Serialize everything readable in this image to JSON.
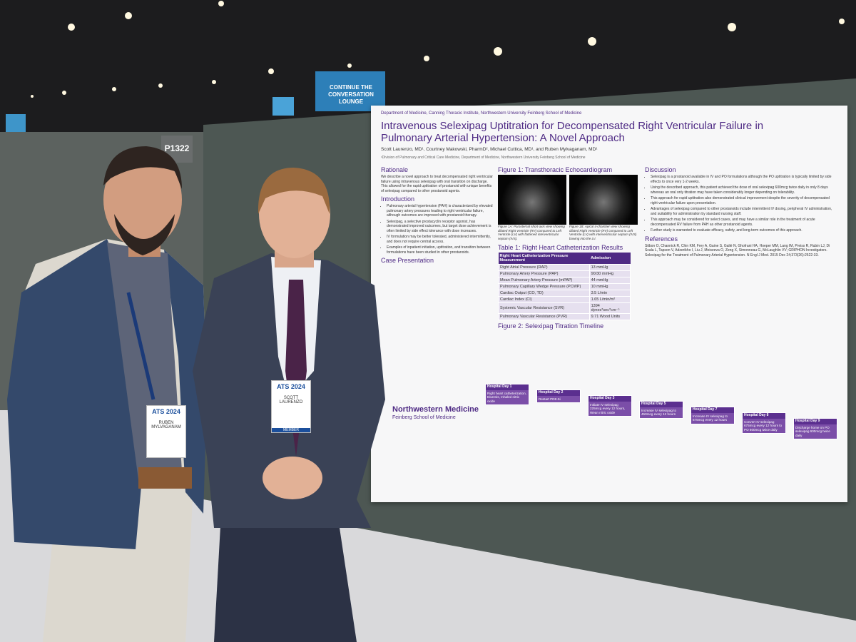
{
  "sign": "CONTINUE THE CONVERSATION LOUNGE",
  "booth": "P1322",
  "poster": {
    "header": "Department of Medicine, Canning Thoracic Institute, Northwestern University Feinberg School of Medicine",
    "title": "Intravenous Selexipag Uptitration for Decompensated Right Ventricular Failure in Pulmonary Arterial Hypertension: A Novel Approach",
    "authors": "Scott Laurenzo, MD¹, Courtney Makowski, PharmD², Michael Cuttica, MD¹, and Ruben Mylvaganam, MD¹",
    "affiliation": "¹Division of Pulmonary and Critical Care Medicine, Department of Medicine, Northwestern University Feinberg School of Medicine",
    "rationale": {
      "heading": "Rationale",
      "text": "We describe a novel approach to treat decompensated right ventricular failure using intravenous selexipag with oral transition on discharge. This allowed for the rapid uptitration of prostanoid with unique benefits of selexipag compared to other prostanoid agents."
    },
    "introduction": {
      "heading": "Introduction",
      "bullets": [
        "Pulmonary arterial hypertension (PAH) is characterized by elevated pulmonary artery pressures leading to right ventricular failure, although outcomes are improved with prostanoid therapy.",
        "Selexipag, a selective prostacyclin receptor agonist, has demonstrated improved outcomes, but target dose achievement is often limited by side effect tolerance with dose increases.",
        "IV formulation may be better tolerated, administered intermittently, and does not require central access.",
        "Examples of inpatient initiation, uptitration, and transition between formulations have been studied in other prostanoids."
      ]
    },
    "case_presentation": {
      "heading": "Case Presentation"
    },
    "figure1": {
      "heading": "Figure 1: Transthoracic Echocardiogram",
      "captions": [
        "Figure 1A: Parasternal short-axis view showing dilated Right Ventricle (RV) compared to Left Ventricle (LV) with flattened interventricular septum (IVS).",
        "Figure 1B: Apical 4-chamber view showing dilated Right Ventricle (RV) compared to Left Ventricle (LV) with interventricular septum (IVS) bowing into the LV."
      ]
    },
    "table1": {
      "heading": "Table 1: Right Heart Catheterization Results",
      "columns": [
        "Right Heart Catheterization Pressure Measurement",
        "Admission"
      ],
      "rows": [
        [
          "Right Atrial Pressure (RAP)",
          "13 mmHg"
        ],
        [
          "Pulmonary Artery Pressure (PAP)",
          "90/30 mmHg"
        ],
        [
          "Mean Pulmonary Artery Pressure (mPAP)",
          "44 mmHg"
        ],
        [
          "Pulmonary Capillary Wedge Pressure (PCWP)",
          "10 mmHg"
        ],
        [
          "Cardiac Output (CO, TD)",
          "3.5 L/min"
        ],
        [
          "Cardiac Index (CI)",
          "1.65 L/min/m²"
        ],
        [
          "Systemic Vascular Resistance (SVR)",
          "1394 dynes*sec*cm⁻⁵"
        ],
        [
          "Pulmonary Vascular Resistance (PVR)",
          "9.71 Wood Units"
        ]
      ]
    },
    "figure2": {
      "heading": "Figure 2: Selexipag Titration Timeline",
      "steps": [
        {
          "day": "Hospital Day 1",
          "text": "Right heart catheterization, Diuresis, Inhaled nitric oxide"
        },
        {
          "day": "Hospital Day 2",
          "text": "Restart PDE-5i"
        },
        {
          "day": "Hospital Day 3",
          "text": "Initiate IV selexipag 225mcg every 12 hours, Wean nitric oxide"
        },
        {
          "day": "Hospital Day 5",
          "text": "Increase IV selexipag to 450mcg every 12 hours"
        },
        {
          "day": "Hospital Day 7",
          "text": "Increase IV selexipag to 675mcg every 12 hours"
        },
        {
          "day": "Hospital Day 8",
          "text": "Convert IV selexipag 675mcg every 12 hours to PO 600mcg twice daily"
        },
        {
          "day": "Hospital Day 9",
          "text": "Discharge home on PO selexipag 600mcg twice daily"
        }
      ]
    },
    "discussion": {
      "heading": "Discussion",
      "bullets": [
        "Selexipag is a prostanoid available in IV and PO formulations although the PO uptitration is typically limited by side effects to once very 1-2 weeks.",
        "Using the described approach, this patient achieved the dose of oral selexipag 600mcg twice daily in only 8 days whereas an oral only titration may have taken considerably longer depending on tolerability.",
        "This approach for rapid uptitration also demonstrated clinical improvement despite the severity of decompensated right ventricular failure upon presentation.",
        "Advantages of selexipag compared to other prostanoids include intermittent IV dosing, peripheral IV administration, and suitability for administration by standard nursing staff.",
        "This approach may be considered for select cases, and may have a similar role in the treatment of acute decompensated RV failure from PAH as other prostanoid agents.",
        "Further study is warranted to evaluate efficacy, safety, and long-term outcomes of this approach."
      ]
    },
    "references": {
      "heading": "References",
      "items": [
        "Sitbon O, Channick R, Chin KM, Frey A, Gaine S, Galiè N, Ghofrani HA, Hoeper MM, Lang IM, Preiss R, Rubin LJ, Di Scala L, Tapson V, Adzerikho I, Liu J, Moiseeva O, Zeng X, Simonneau G, McLaughlin VV; GRIPHON Investigators. Selexipag for the Treatment of Pulmonary Arterial Hypertension. N Engl J Med. 2015 Dec 24;373(26):2522-33."
      ]
    },
    "logo": {
      "name": "Northwestern Medicine",
      "sub": "Feinberg School of Medicine"
    }
  },
  "badges": [
    {
      "event": "ATS 2024",
      "name": "RUBEN MYLVAGANAM"
    },
    {
      "event": "ATS 2024",
      "name": "SCOTT LAURENZO",
      "role": "MEMBER"
    }
  ]
}
